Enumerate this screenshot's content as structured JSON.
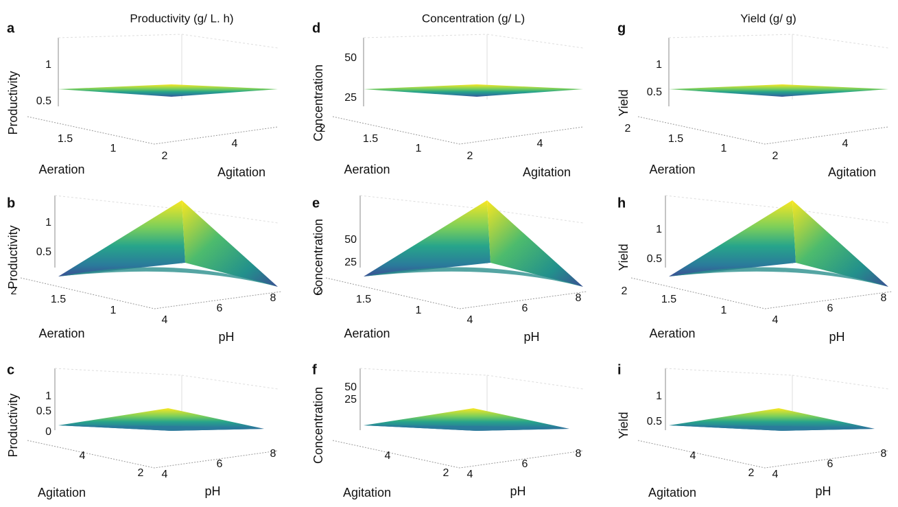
{
  "column_titles": [
    "Productivity (g/ L. h)",
    "Concentration (g/ L)",
    "Yield (g/ g)"
  ],
  "panels": [
    {
      "letter": "a",
      "z_label": "Productivity",
      "z_ticks": [
        1,
        0.5
      ],
      "y_ticks": [
        1.5,
        1
      ],
      "x_ticks": [
        2,
        4
      ],
      "y_label": "Aeration",
      "x_label": "Agitation"
    },
    {
      "letter": "b",
      "z_label": "Productivity",
      "z_ticks": [
        1,
        0.5
      ],
      "y_ticks": [
        2,
        1.5,
        1
      ],
      "x_ticks": [
        4,
        6,
        8
      ],
      "y_label": "Aeration",
      "x_label": "pH"
    },
    {
      "letter": "c",
      "z_label": "Productivity",
      "z_ticks": [
        1,
        0.5,
        0
      ],
      "y_ticks": [
        4,
        2
      ],
      "x_ticks": [
        4,
        6,
        8
      ],
      "y_label": "Agitation",
      "x_label": "pH"
    },
    {
      "letter": "d",
      "z_label": "Concentration",
      "z_ticks": [
        50,
        25
      ],
      "y_ticks": [
        2,
        1.5,
        1
      ],
      "x_ticks": [
        2,
        4
      ],
      "y_label": "Aeration",
      "x_label": "Agitation"
    },
    {
      "letter": "e",
      "z_label": "Concentration",
      "z_ticks": [
        50,
        25
      ],
      "y_ticks": [
        2,
        1.5,
        1
      ],
      "x_ticks": [
        4,
        6,
        8
      ],
      "y_label": "Aeration",
      "x_label": "pH"
    },
    {
      "letter": "f",
      "z_label": "Concentration",
      "z_ticks": [
        50,
        25
      ],
      "y_ticks": [
        4,
        2
      ],
      "x_ticks": [
        4,
        6,
        8
      ],
      "y_label": "Agitation",
      "x_label": "pH"
    },
    {
      "letter": "g",
      "z_label": "Yield",
      "z_ticks": [
        1,
        0.5
      ],
      "y_ticks": [
        2,
        1.5,
        1
      ],
      "x_ticks": [
        2,
        4
      ],
      "y_label": "Aeration",
      "x_label": "Agitation"
    },
    {
      "letter": "h",
      "z_label": "Yield",
      "z_ticks": [
        1,
        0.5
      ],
      "y_ticks": [
        2,
        1.5,
        1
      ],
      "x_ticks": [
        4,
        6,
        8
      ],
      "y_label": "Aeration",
      "x_label": "pH"
    },
    {
      "letter": "i",
      "z_label": "Yield",
      "z_ticks": [
        1,
        0.5
      ],
      "y_ticks": [
        4,
        2
      ],
      "x_ticks": [
        4,
        6,
        8
      ],
      "y_label": "Agitation",
      "x_label": "pH"
    }
  ]
}
